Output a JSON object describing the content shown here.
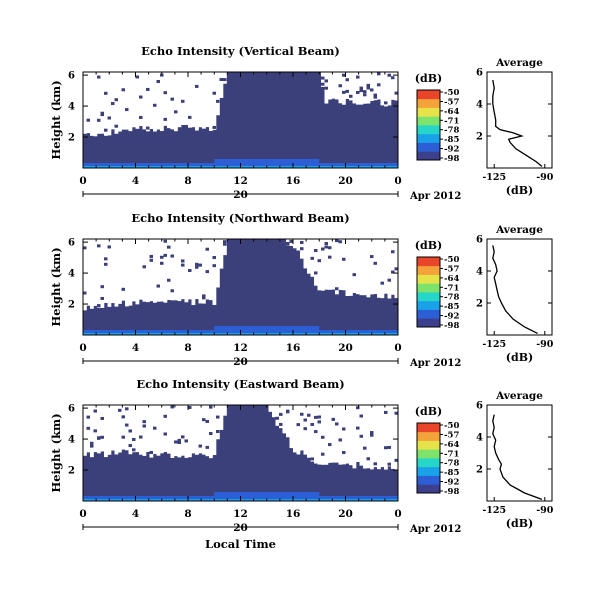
{
  "figure": {
    "xlabel": "Local Time",
    "date_label": "Apr 2012",
    "colorbar_unit": "(dB)",
    "colorbar_ticks": [
      "-50",
      "-57",
      "-64",
      "-71",
      "-78",
      "-85",
      "-92",
      "-98"
    ],
    "colormap": [
      "#3b3f8c",
      "#2c5fd6",
      "#1aa2e8",
      "#26d6c8",
      "#7ee36a",
      "#e6e34a",
      "#f4a23a",
      "#e8452a"
    ],
    "background_color": "#3b3f7a"
  },
  "chart_data": [
    {
      "type": "heatmap",
      "title": "Echo Intensity (Vertical Beam)",
      "ylabel": "Height (km)",
      "xticks": [
        "0",
        "4",
        "8",
        "12",
        "16",
        "20",
        "0"
      ],
      "xlim": [
        0,
        24
      ],
      "yticks": [
        "6",
        "4",
        "2"
      ],
      "ylim": [
        0,
        6.2
      ],
      "day_label": "20",
      "gap_color": "#ffffff",
      "clear_air_top_km": [
        [
          0,
          2.1
        ],
        [
          3,
          2.4
        ],
        [
          6,
          2.6
        ],
        [
          10,
          2.5
        ],
        [
          11,
          6.2
        ],
        [
          14,
          6.2
        ],
        [
          18,
          6.2
        ],
        [
          18.5,
          4.3
        ],
        [
          21,
          4.2
        ],
        [
          24,
          4.2
        ]
      ],
      "colorbar_range": [
        -98,
        -50
      ],
      "profile": {
        "title": "Average",
        "xlabel": "(dB)",
        "xticks": [
          "-125",
          "-90"
        ],
        "xlim": [
          -130,
          -85
        ],
        "yticks": [
          "6",
          "4",
          "2"
        ],
        "ylim": [
          0,
          6
        ],
        "heights": [
          0.1,
          0.4,
          0.8,
          1.2,
          1.6,
          1.8,
          2.0,
          2.2,
          2.4,
          2.6,
          3.0,
          3.5,
          4.0,
          4.5,
          5.0,
          5.5
        ],
        "values": [
          -92,
          -96,
          -103,
          -110,
          -114,
          -115,
          -106,
          -112,
          -121,
          -124,
          -124,
          -125,
          -126,
          -126,
          -125,
          -126
        ]
      }
    },
    {
      "type": "heatmap",
      "title": "Echo Intensity (Northward Beam)",
      "ylabel": "Height (km)",
      "xticks": [
        "0",
        "4",
        "8",
        "12",
        "16",
        "20",
        "0"
      ],
      "xlim": [
        0,
        24
      ],
      "yticks": [
        "6",
        "4",
        "2"
      ],
      "ylim": [
        0,
        6.2
      ],
      "day_label": "20",
      "gap_color": "#ffffff",
      "clear_air_top_km": [
        [
          0,
          1.8
        ],
        [
          3,
          2.0
        ],
        [
          6,
          2.2
        ],
        [
          10,
          2.1
        ],
        [
          11,
          6.2
        ],
        [
          14,
          6.2
        ],
        [
          16,
          5.8
        ],
        [
          18,
          3.0
        ],
        [
          21,
          2.6
        ],
        [
          24,
          2.5
        ]
      ],
      "colorbar_range": [
        -98,
        -50
      ],
      "profile": {
        "title": "Average",
        "xlabel": "(dB)",
        "xticks": [
          "-125",
          "-90"
        ],
        "xlim": [
          -130,
          -85
        ],
        "yticks": [
          "6",
          "4",
          "2"
        ],
        "ylim": [
          0,
          6
        ],
        "heights": [
          0.1,
          0.5,
          1.0,
          1.5,
          2.0,
          2.4,
          2.8,
          3.2,
          3.6,
          4.0,
          4.4,
          4.8,
          5.2,
          5.6
        ],
        "values": [
          -95,
          -104,
          -112,
          -117,
          -120,
          -122,
          -123,
          -124,
          -125,
          -123,
          -124,
          -126,
          -125,
          -126
        ]
      }
    },
    {
      "type": "heatmap",
      "title": "Echo Intensity (Eastward Beam)",
      "ylabel": "Height (km)",
      "xticks": [
        "0",
        "4",
        "8",
        "12",
        "16",
        "20",
        "0"
      ],
      "xlim": [
        0,
        24
      ],
      "yticks": [
        "6",
        "4",
        "2"
      ],
      "ylim": [
        0,
        6.2
      ],
      "day_label": "20",
      "gap_color": "#ffffff",
      "clear_air_top_km": [
        [
          0,
          3.0
        ],
        [
          3,
          3.1
        ],
        [
          6,
          3.0
        ],
        [
          10,
          2.9
        ],
        [
          11,
          6.2
        ],
        [
          14,
          6.2
        ],
        [
          16,
          3.4
        ],
        [
          18,
          2.5
        ],
        [
          21,
          2.3
        ],
        [
          24,
          2.2
        ]
      ],
      "colorbar_range": [
        -98,
        -50
      ],
      "profile": {
        "title": "Average",
        "xlabel": "(dB)",
        "xticks": [
          "-125",
          "-90"
        ],
        "xlim": [
          -130,
          -85
        ],
        "yticks": [
          "6",
          "4",
          "2"
        ],
        "ylim": [
          0,
          6
        ],
        "heights": [
          0.1,
          0.5,
          1.0,
          1.5,
          2.0,
          2.3,
          2.6,
          3.0,
          3.4,
          3.8,
          4.2,
          4.6,
          5.0,
          5.4
        ],
        "values": [
          -92,
          -104,
          -114,
          -119,
          -121,
          -120,
          -122,
          -124,
          -125,
          -124,
          -126,
          -125,
          -126,
          -125
        ]
      }
    }
  ]
}
